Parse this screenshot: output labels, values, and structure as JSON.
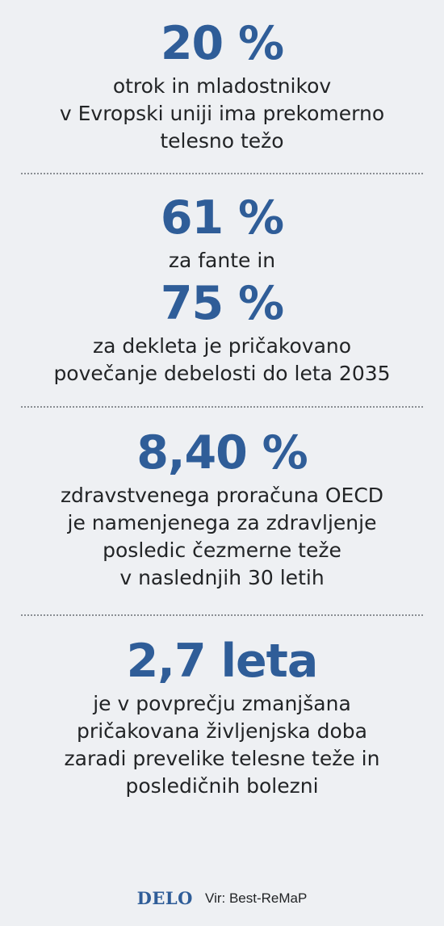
{
  "blocks": [
    {
      "value": "20 %",
      "lines": [
        "otrok in mladostnikov",
        "v Evropski uniji ima prekomerno",
        "telesno težo"
      ]
    },
    {
      "value": "61 %",
      "lines": [
        "za fante in"
      ]
    },
    {
      "value": "75 %",
      "lines": [
        "za dekleta je pričakovano",
        "povečanje debelosti do leta 2035"
      ]
    },
    {
      "value": "8,40 %",
      "lines": [
        "zdravstvenega proračuna OECD",
        "je namenjenega za zdravljenje",
        "posledic čezmerne teže",
        "v naslednjih 30 letih"
      ]
    },
    {
      "value": "2,7 leta",
      "lines": [
        "je v povprečju zmanjšana",
        "pričakovana življenjska doba",
        "zaradi prevelike telesne teže in",
        "posledičnih bolezni"
      ]
    }
  ],
  "footer": {
    "logo": "DELO",
    "source": "Vir: Best-ReMaP"
  },
  "colors": {
    "accent": "#2f5d98",
    "background": "#eef0f3",
    "text": "#222426"
  }
}
